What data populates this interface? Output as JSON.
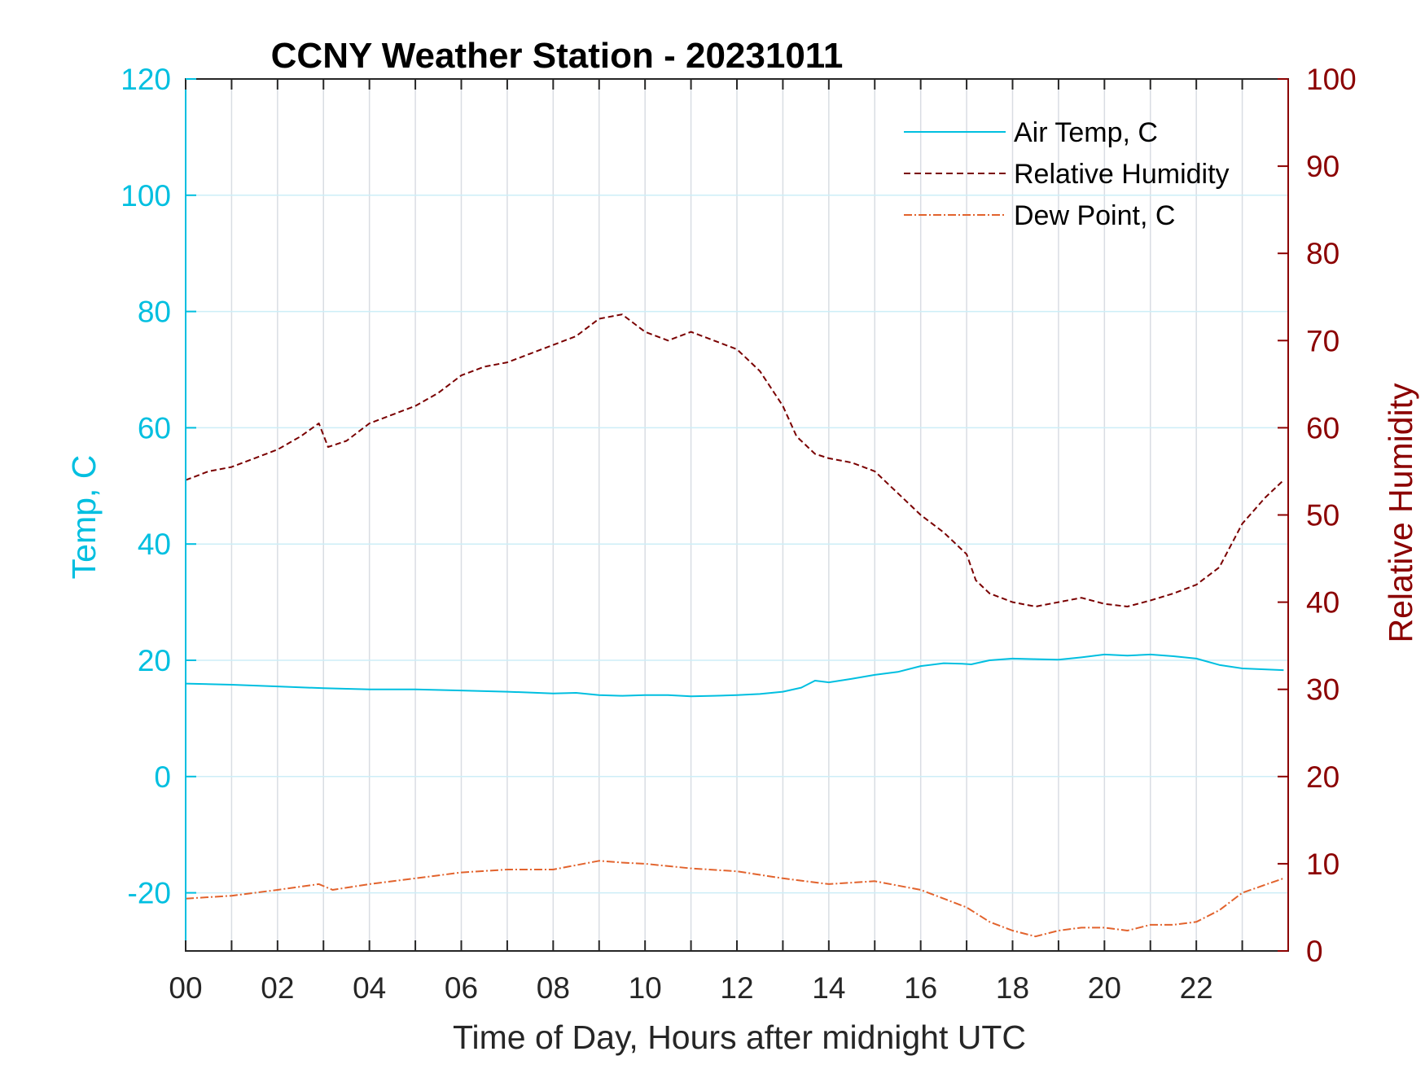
{
  "chart_data": {
    "type": "line",
    "title": "CCNY Weather Station - 20231011",
    "xlabel": "Time of Day, Hours after midnight UTC",
    "ylabel_left": "Temp, C",
    "ylabel_right": "Relative Humidity",
    "xlim": [
      0,
      24
    ],
    "ylim_left": [
      -30,
      120
    ],
    "ylim_right": [
      0,
      100
    ],
    "x_ticks": [
      "00",
      "02",
      "04",
      "06",
      "08",
      "10",
      "12",
      "14",
      "16",
      "18",
      "20",
      "22"
    ],
    "y_left_ticks": [
      "-20",
      "0",
      "20",
      "40",
      "60",
      "80",
      "100",
      "120"
    ],
    "y_right_ticks": [
      "0",
      "10",
      "20",
      "30",
      "40",
      "50",
      "60",
      "70",
      "80",
      "90",
      "100"
    ],
    "grid": true,
    "legend_position": "top-right",
    "colors": {
      "air_temp": "#00bfe0",
      "relative_humidity": "#7a0000",
      "dew_point": "#e2632d",
      "left_axis": "#00bfe0",
      "right_axis": "#8b0000",
      "grid": "#d9dde3",
      "hgrid": "#cdeef7"
    },
    "series": [
      {
        "name": "Air Temp, C",
        "axis": "left",
        "style": "solid",
        "x": [
          0,
          1,
          2,
          3,
          4,
          5,
          6,
          7,
          8,
          8.5,
          9,
          9.5,
          10,
          10.5,
          11,
          11.5,
          12,
          12.5,
          13,
          13.4,
          13.7,
          14,
          14.5,
          15,
          15.5,
          16,
          16.5,
          16.9,
          17.1,
          17.5,
          18,
          18.5,
          19,
          19.5,
          20,
          20.5,
          21,
          21.5,
          22,
          22.5,
          23,
          23.9
        ],
        "values": [
          16,
          15.8,
          15.5,
          15.2,
          15,
          15,
          14.8,
          14.6,
          14.3,
          14.4,
          14,
          13.9,
          14,
          14,
          13.8,
          13.9,
          14,
          14.2,
          14.6,
          15.3,
          16.5,
          16.2,
          16.8,
          17.5,
          18,
          19,
          19.5,
          19.4,
          19.3,
          20,
          20.3,
          20.2,
          20.1,
          20.5,
          21,
          20.8,
          21,
          20.7,
          20.3,
          19.2,
          18.6,
          18.3
        ]
      },
      {
        "name": "Relative Humidity",
        "axis": "right",
        "style": "dashed",
        "x": [
          0,
          0.5,
          1,
          1.5,
          2,
          2.5,
          2.9,
          3.1,
          3.5,
          4,
          4.5,
          5,
          5.5,
          6,
          6.5,
          7,
          7.5,
          8,
          8.5,
          9,
          9.5,
          10,
          10.5,
          11,
          11.5,
          12,
          12.5,
          13,
          13.3,
          13.7,
          14,
          14.5,
          15,
          15.5,
          16,
          16.5,
          17,
          17.2,
          17.5,
          18,
          18.5,
          19,
          19.5,
          20,
          20.5,
          21,
          21.5,
          22,
          22.5,
          23,
          23.5,
          23.9
        ],
        "values": [
          54,
          55,
          55.5,
          56.5,
          57.5,
          59,
          60.5,
          57.8,
          58.5,
          60.5,
          61.5,
          62.5,
          64,
          66,
          67,
          67.5,
          68.5,
          69.5,
          70.5,
          72.5,
          73,
          71,
          70,
          71,
          70,
          69,
          66.5,
          62.5,
          59,
          57,
          56.5,
          56,
          55,
          52.5,
          50,
          48,
          45.5,
          42.5,
          41,
          40,
          39.5,
          40,
          40.5,
          39.8,
          39.5,
          40.2,
          41,
          42,
          44,
          49,
          52,
          54
        ]
      },
      {
        "name": "Dew Point, C",
        "axis": "left",
        "style": "dashdot",
        "x": [
          0,
          1,
          2,
          2.9,
          3.2,
          4,
          5,
          6,
          7,
          8,
          9,
          9.5,
          10,
          11,
          12,
          13,
          14,
          15,
          16,
          16.5,
          17,
          17.5,
          18,
          18.5,
          19,
          19.5,
          20,
          20.5,
          21,
          21.5,
          22,
          22.5,
          23,
          23.9
        ],
        "values": [
          -21,
          -20.5,
          -19.5,
          -18.5,
          -19.5,
          -18.5,
          -17.5,
          -16.5,
          -16,
          -16,
          -14.5,
          -14.8,
          -15,
          -15.8,
          -16.3,
          -17.5,
          -18.5,
          -18,
          -19.5,
          -21,
          -22.5,
          -25,
          -26.5,
          -27.5,
          -26.5,
          -26,
          -26,
          -26.5,
          -25.5,
          -25.5,
          -25,
          -23,
          -20,
          -17.5
        ]
      }
    ]
  }
}
